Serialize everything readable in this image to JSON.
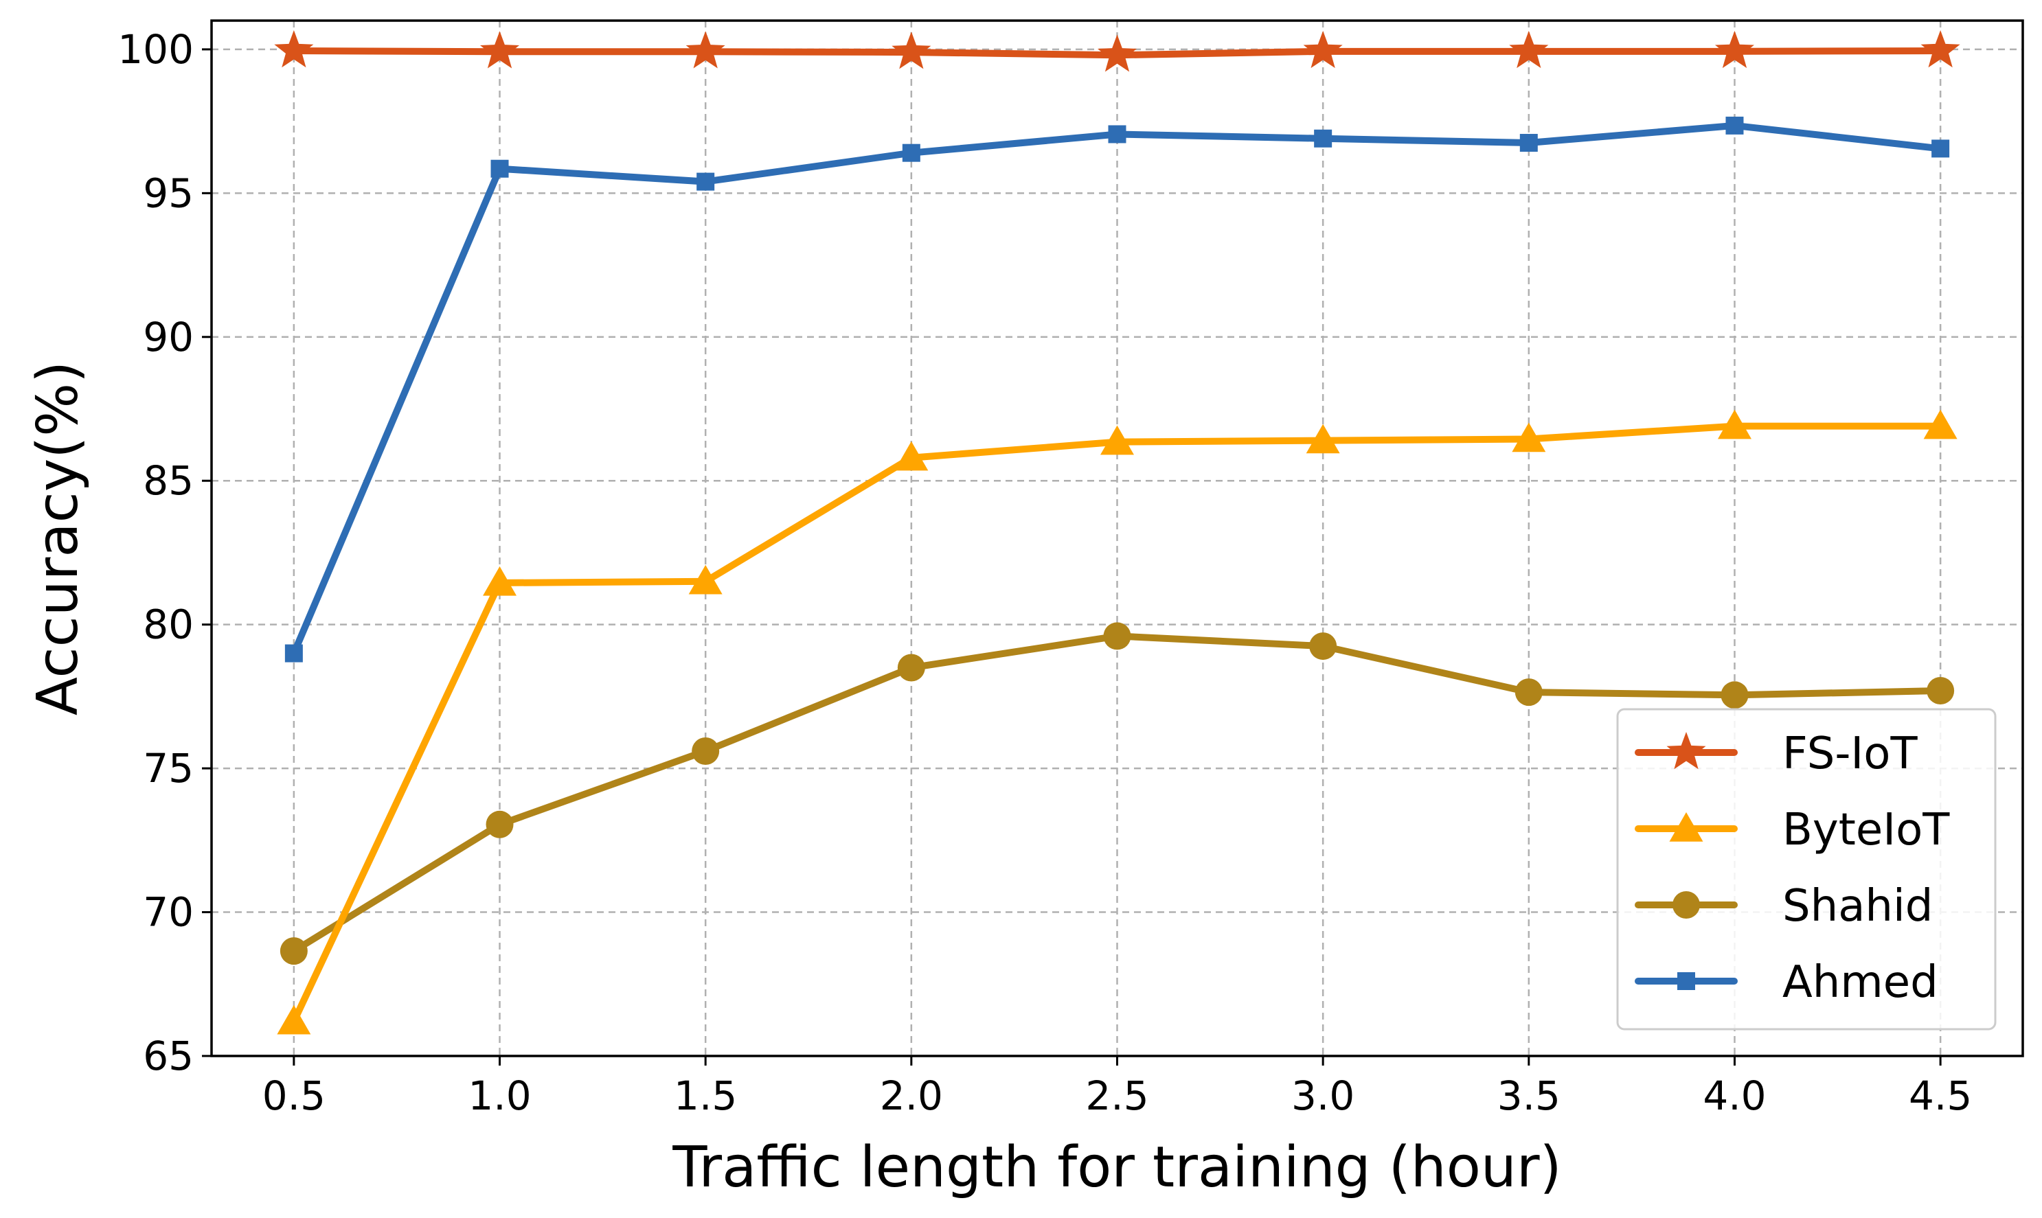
{
  "chart_data": {
    "type": "line",
    "title": "",
    "xlabel": "Traffic length for training (hour)",
    "ylabel": "Accuracy(%)",
    "x": [
      0.5,
      1.0,
      1.5,
      2.0,
      2.5,
      3.0,
      3.5,
      4.0,
      4.5
    ],
    "x_tick_labels": [
      "0.5",
      "1.0",
      "1.5",
      "2.0",
      "2.5",
      "3.0",
      "3.5",
      "4.0",
      "4.5"
    ],
    "y_ticks": [
      65,
      70,
      75,
      80,
      85,
      90,
      95,
      100
    ],
    "y_tick_labels": [
      "65",
      "70",
      "75",
      "80",
      "85",
      "90",
      "95",
      "100"
    ],
    "xlim": [
      0.3,
      4.7
    ],
    "ylim": [
      65,
      101
    ],
    "grid": true,
    "legend_position": "lower-right",
    "series": [
      {
        "name": "FS-IoT",
        "marker": "star",
        "color": "#d95319",
        "values": [
          99.95,
          99.92,
          99.92,
          99.9,
          99.8,
          99.93,
          99.93,
          99.93,
          99.95
        ]
      },
      {
        "name": "ByteIoT",
        "marker": "triangle",
        "color": "#ffa500",
        "values": [
          66.2,
          81.45,
          81.5,
          85.8,
          86.35,
          86.4,
          86.45,
          86.9,
          86.9
        ]
      },
      {
        "name": "Shahid",
        "marker": "circle",
        "color": "#b08419",
        "values": [
          68.65,
          73.05,
          75.6,
          78.5,
          79.6,
          79.25,
          77.65,
          77.55,
          77.7
        ]
      },
      {
        "name": "Ahmed",
        "marker": "square",
        "color": "#2e6db4",
        "values": [
          79.0,
          95.85,
          95.4,
          96.4,
          97.05,
          96.9,
          96.75,
          97.35,
          96.55
        ]
      }
    ]
  }
}
